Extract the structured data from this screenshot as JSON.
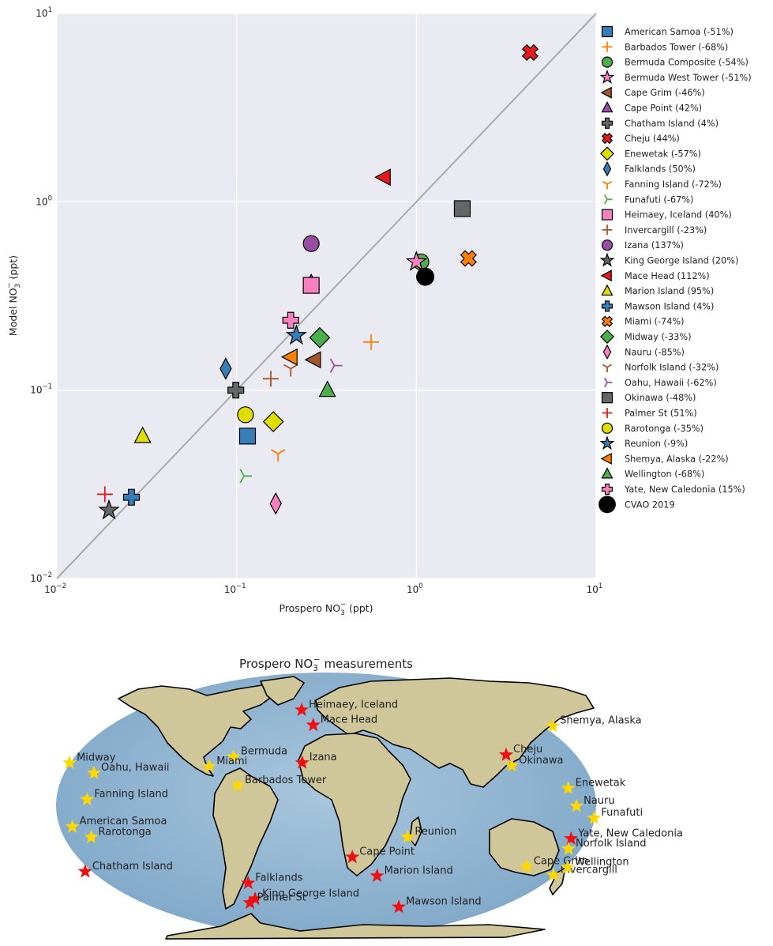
{
  "chart_data": [
    {
      "type": "scatter",
      "xlabel": "Prospero NO3- (ppt)",
      "ylabel": "Model NO3- (ppt)",
      "x_scale": "log",
      "y_scale": "log",
      "xlim": [
        0.01,
        10
      ],
      "ylim": [
        0.01,
        10
      ],
      "x_ticks": [
        {
          "value": 0.01,
          "base": "10",
          "exp": "−2"
        },
        {
          "value": 0.1,
          "base": "10",
          "exp": "−1"
        },
        {
          "value": 1,
          "base": "10",
          "exp": "0"
        },
        {
          "value": 10,
          "base": "10",
          "exp": "1"
        }
      ],
      "y_ticks": [
        {
          "value": 0.01,
          "base": "10",
          "exp": "−2"
        },
        {
          "value": 0.1,
          "base": "10",
          "exp": "−1"
        },
        {
          "value": 1,
          "base": "10",
          "exp": "0"
        },
        {
          "value": 10,
          "base": "10",
          "exp": "1"
        }
      ],
      "grid": true,
      "one_to_one_line": true,
      "legend_position": "right",
      "series": [
        {
          "name": "American Samoa (-51%)",
          "marker": "square",
          "color": "#377eb8",
          "x": 0.115,
          "y": 0.057
        },
        {
          "name": "Barbados Tower (-68%)",
          "marker": "plus",
          "color": "#ff7f00",
          "x": 0.56,
          "y": 0.18
        },
        {
          "name": "Bermuda Composite (-54%)",
          "marker": "circle",
          "color": "#4daf4a",
          "x": 1.06,
          "y": 0.48
        },
        {
          "name": "Bermuda West Tower (-51%)",
          "marker": "star",
          "color": "#f781bf",
          "x": 1.0,
          "y": 0.48
        },
        {
          "name": "Cape Grim (-46%)",
          "marker": "triangle-left",
          "color": "#a65628",
          "x": 0.27,
          "y": 0.145
        },
        {
          "name": "Cape Point (42%)",
          "marker": "triangle-up",
          "color": "#984ea3",
          "x": 0.26,
          "y": 0.37
        },
        {
          "name": "Chatham Island (4%)",
          "marker": "thick-plus",
          "color": "#666666",
          "x": 0.099,
          "y": 0.1
        },
        {
          "name": "Cheju (44%)",
          "marker": "thick-x",
          "color": "#e41a1c",
          "x": 4.3,
          "y": 6.2
        },
        {
          "name": "Enewetak (-57%)",
          "marker": "diamond",
          "color": "#dede00",
          "x": 0.16,
          "y": 0.068
        },
        {
          "name": "Falklands (50%)",
          "marker": "thin-diamond",
          "color": "#377eb8",
          "x": 0.087,
          "y": 0.13
        },
        {
          "name": "Fanning Island (-72%)",
          "marker": "tri-down",
          "color": "#ff7f00",
          "x": 0.17,
          "y": 0.046
        },
        {
          "name": "Funafuti (-67%)",
          "marker": "tri-right",
          "color": "#4daf4a",
          "x": 0.11,
          "y": 0.035
        },
        {
          "name": "Heimaey, Iceland (40%)",
          "marker": "square",
          "color": "#f781bf",
          "x": 0.26,
          "y": 0.36
        },
        {
          "name": "Invercargill (-23%)",
          "marker": "plus",
          "color": "#a65628",
          "x": 0.155,
          "y": 0.115
        },
        {
          "name": "Izana (137%)",
          "marker": "circle",
          "color": "#984ea3",
          "x": 0.26,
          "y": 0.6
        },
        {
          "name": "King George Island (20%)",
          "marker": "star",
          "color": "#666666",
          "x": 0.0195,
          "y": 0.023
        },
        {
          "name": "Mace Head (112%)",
          "marker": "triangle-left",
          "color": "#e41a1c",
          "x": 0.66,
          "y": 1.35
        },
        {
          "name": "Marion Island (95%)",
          "marker": "triangle-up",
          "color": "#dede00",
          "x": 0.03,
          "y": 0.057
        },
        {
          "name": "Mawson Island (4%)",
          "marker": "thick-plus",
          "color": "#377eb8",
          "x": 0.026,
          "y": 0.027
        },
        {
          "name": "Miami (-74%)",
          "marker": "thick-x",
          "color": "#ff7f00",
          "x": 1.95,
          "y": 0.5
        },
        {
          "name": "Midway (-33%)",
          "marker": "diamond",
          "color": "#4daf4a",
          "x": 0.29,
          "y": 0.19
        },
        {
          "name": "Nauru (-85%)",
          "marker": "thin-diamond",
          "color": "#f781bf",
          "x": 0.165,
          "y": 0.025
        },
        {
          "name": "Norfolk Island (-32%)",
          "marker": "tri-down",
          "color": "#a65628",
          "x": 0.2,
          "y": 0.13
        },
        {
          "name": "Oahu, Hawaii (-62%)",
          "marker": "tri-right",
          "color": "#984ea3",
          "x": 0.35,
          "y": 0.135
        },
        {
          "name": "Okinawa (-48%)",
          "marker": "square",
          "color": "#666666",
          "x": 1.8,
          "y": 0.92
        },
        {
          "name": "Palmer St (51%)",
          "marker": "plus",
          "color": "#e41a1c",
          "x": 0.0185,
          "y": 0.028
        },
        {
          "name": "Rarotonga (-35%)",
          "marker": "circle",
          "color": "#dede00",
          "x": 0.112,
          "y": 0.074
        },
        {
          "name": "Reunion (-9%)",
          "marker": "star",
          "color": "#377eb8",
          "x": 0.215,
          "y": 0.195
        },
        {
          "name": "Shemya, Alaska (-22%)",
          "marker": "triangle-left",
          "color": "#ff7f00",
          "x": 0.2,
          "y": 0.15
        },
        {
          "name": "Wellington (-68%)",
          "marker": "triangle-up",
          "color": "#4daf4a",
          "x": 0.32,
          "y": 0.1
        },
        {
          "name": "Yate, New Caledonia (15%)",
          "marker": "thick-plus",
          "color": "#f781bf",
          "x": 0.2,
          "y": 0.235
        },
        {
          "name": "CVAO 2019",
          "marker": "big-circle",
          "color": "#000000",
          "x": 1.12,
          "y": 0.4
        }
      ]
    },
    {
      "type": "map",
      "title": "Prospero NO3- measurements",
      "projection": "Robinson",
      "background": "shaded relief",
      "marker_colors": {
        "yellow": "#ffd700",
        "red": "#ee1111"
      },
      "sites": [
        {
          "name": "Shemya, Alaska",
          "lon": 174.1,
          "lat": 52.7,
          "color": "yellow"
        },
        {
          "name": "Heimaey, Iceland",
          "lon": -20.3,
          "lat": 63.4,
          "color": "red"
        },
        {
          "name": "Mace Head",
          "lon": -9.9,
          "lat": 53.3,
          "color": "red"
        },
        {
          "name": "Midway",
          "lon": -177.4,
          "lat": 28.2,
          "color": "yellow"
        },
        {
          "name": "Oahu, Hawaii",
          "lon": -158.0,
          "lat": 21.5,
          "color": "yellow"
        },
        {
          "name": "Bermuda",
          "lon": -64.7,
          "lat": 32.3,
          "color": "yellow"
        },
        {
          "name": "Miami",
          "lon": -80.2,
          "lat": 25.8,
          "color": "yellow"
        },
        {
          "name": "Izana",
          "lon": -16.5,
          "lat": 28.3,
          "color": "red"
        },
        {
          "name": "Barbados Tower",
          "lon": -59.4,
          "lat": 13.2,
          "color": "yellow"
        },
        {
          "name": "Cheju",
          "lon": 126.5,
          "lat": 33.5,
          "color": "red"
        },
        {
          "name": "Okinawa",
          "lon": 127.8,
          "lat": 26.3,
          "color": "yellow"
        },
        {
          "name": "Enewetak",
          "lon": 162.3,
          "lat": 11.3,
          "color": "yellow"
        },
        {
          "name": "Fanning Island",
          "lon": -159.4,
          "lat": 3.9,
          "color": "yellow"
        },
        {
          "name": "Nauru",
          "lon": 166.9,
          "lat": -0.5,
          "color": "yellow"
        },
        {
          "name": "Funafuti",
          "lon": 179.2,
          "lat": -8.5,
          "color": "yellow"
        },
        {
          "name": "American Samoa",
          "lon": -170.7,
          "lat": -14.3,
          "color": "yellow"
        },
        {
          "name": "Rarotonga",
          "lon": -159.8,
          "lat": -21.2,
          "color": "yellow"
        },
        {
          "name": "Reunion",
          "lon": 55.5,
          "lat": -21.1,
          "color": "yellow"
        },
        {
          "name": "Yate, New Caledonia",
          "lon": 167.0,
          "lat": -22.2,
          "color": "red"
        },
        {
          "name": "Norfolk Island",
          "lon": 168.0,
          "lat": -29.0,
          "color": "yellow"
        },
        {
          "name": "Cape Point",
          "lon": 18.5,
          "lat": -34.4,
          "color": "red"
        },
        {
          "name": "Cape Grim",
          "lon": 144.7,
          "lat": -40.7,
          "color": "yellow"
        },
        {
          "name": "Invercargill",
          "lon": 168.4,
          "lat": -46.4,
          "color": "yellow"
        },
        {
          "name": "Wellington",
          "lon": 174.8,
          "lat": -41.3,
          "color": "yellow"
        },
        {
          "name": "Chatham Island",
          "lon": -176.5,
          "lat": -44.0,
          "color": "red"
        },
        {
          "name": "Marion Island",
          "lon": 37.9,
          "lat": -46.9,
          "color": "red"
        },
        {
          "name": "Falklands",
          "lon": -59.5,
          "lat": -51.7,
          "color": "red"
        },
        {
          "name": "King George Island",
          "lon": -58.4,
          "lat": -62.2,
          "color": "red"
        },
        {
          "name": "Mawson Island",
          "lon": 62.9,
          "lat": -67.6,
          "color": "red"
        },
        {
          "name": "Palmer St",
          "lon": -64.1,
          "lat": -64.8,
          "color": "red"
        }
      ]
    }
  ]
}
